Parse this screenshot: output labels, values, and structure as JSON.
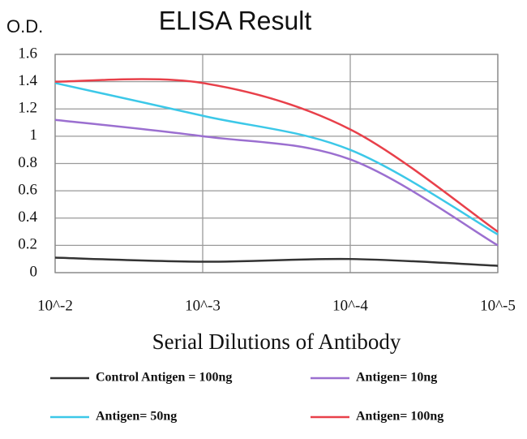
{
  "chart_data": {
    "type": "line",
    "title": "ELISA Result",
    "y_label": "O.D.",
    "x_label": "Serial Dilutions of Antibody",
    "categories": [
      "10^-2",
      "10^-3",
      "10^-4",
      "10^-5"
    ],
    "series": [
      {
        "name": "Control Antigen = 100ng",
        "color": "#333333",
        "values": [
          0.11,
          0.08,
          0.1,
          0.05
        ]
      },
      {
        "name": "Antigen= 10ng",
        "color": "#9b6fd0",
        "values": [
          1.12,
          1.0,
          0.83,
          0.2
        ]
      },
      {
        "name": "Antigen= 50ng",
        "color": "#3cc8e8",
        "values": [
          1.39,
          1.15,
          0.9,
          0.28
        ]
      },
      {
        "name": "Antigen= 100ng",
        "color": "#e8404a",
        "values": [
          1.4,
          1.39,
          1.05,
          0.3
        ]
      }
    ],
    "ylim": [
      0,
      1.6
    ],
    "yticks": [
      0,
      0.2,
      0.4,
      0.6,
      0.8,
      1,
      1.2,
      1.4,
      1.6
    ],
    "grid": true
  }
}
